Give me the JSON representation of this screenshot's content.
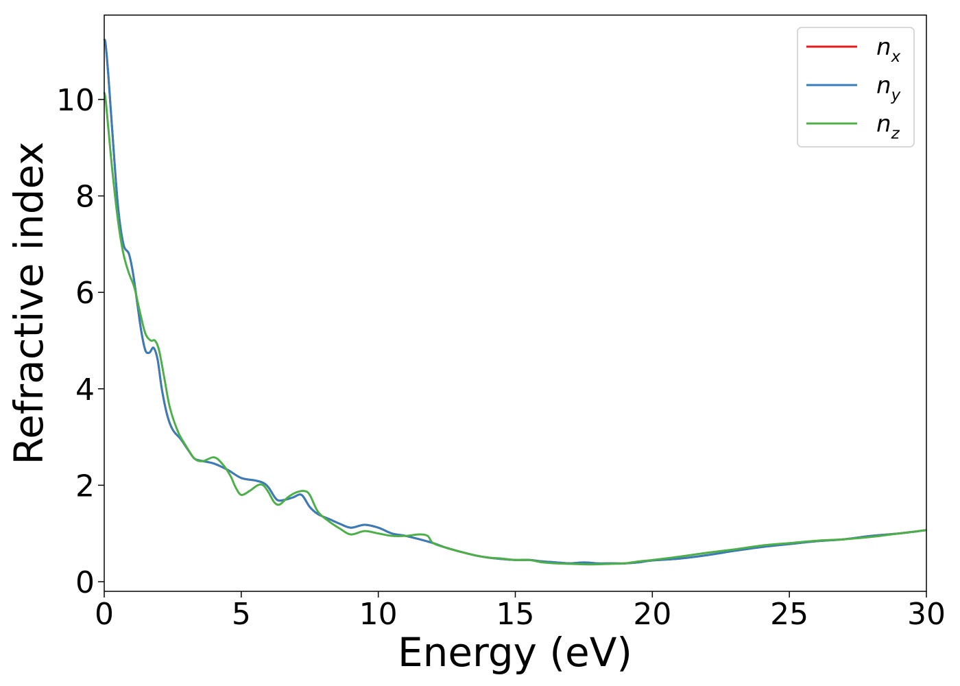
{
  "chart_data": {
    "type": "line",
    "title": "",
    "xlabel": "Energy (eV)",
    "ylabel": "Refractive index",
    "xlim": [
      0,
      30
    ],
    "ylim": [
      -0.2,
      11.75
    ],
    "xticks": [
      0,
      5,
      10,
      15,
      20,
      25,
      30
    ],
    "xtick_labels": [
      "0",
      "5",
      "10",
      "15",
      "20",
      "25",
      "30"
    ],
    "yticks": [
      0,
      2,
      4,
      6,
      8,
      10
    ],
    "ytick_labels": [
      "0",
      "2",
      "4",
      "6",
      "8",
      "10"
    ],
    "grid": false,
    "legend_position": "top-right",
    "series": [
      {
        "name": "n_x",
        "legend": {
          "base": "n",
          "sub": "x"
        },
        "color": "#e41a1c",
        "x": [
          0.0,
          0.05,
          0.15,
          0.3,
          0.5,
          0.7,
          0.9,
          1.05,
          1.2,
          1.35,
          1.5,
          1.65,
          1.8,
          1.95,
          2.1,
          2.3,
          2.5,
          2.8,
          3.1,
          3.3,
          3.6,
          4.0,
          4.5,
          5.0,
          5.5,
          5.8,
          6.0,
          6.3,
          6.6,
          6.9,
          7.2,
          7.5,
          7.8,
          8.2,
          8.6,
          9.0,
          9.5,
          10.0,
          10.5,
          11.0,
          11.5,
          12.0,
          12.5,
          13.0,
          13.5,
          14.0,
          14.5,
          15.0,
          15.5,
          16.0,
          16.5,
          17.0,
          17.5,
          18.0,
          18.5,
          19.0,
          19.5,
          20.0,
          21.0,
          22.0,
          23.0,
          24.0,
          25.0,
          26.0,
          27.0,
          28.0,
          29.0,
          30.0
        ],
        "y": [
          11.25,
          11.15,
          10.5,
          9.3,
          7.8,
          7.0,
          6.8,
          6.4,
          5.8,
          5.2,
          4.8,
          4.75,
          4.85,
          4.6,
          4.0,
          3.45,
          3.15,
          2.95,
          2.7,
          2.55,
          2.5,
          2.45,
          2.32,
          2.15,
          2.1,
          2.05,
          1.95,
          1.7,
          1.7,
          1.75,
          1.8,
          1.55,
          1.4,
          1.3,
          1.2,
          1.12,
          1.18,
          1.12,
          1.0,
          0.95,
          0.88,
          0.8,
          0.7,
          0.62,
          0.55,
          0.5,
          0.47,
          0.45,
          0.45,
          0.42,
          0.4,
          0.38,
          0.4,
          0.38,
          0.38,
          0.38,
          0.4,
          0.44,
          0.48,
          0.55,
          0.64,
          0.72,
          0.78,
          0.84,
          0.88,
          0.95,
          1.0,
          1.07
        ]
      },
      {
        "name": "n_y",
        "legend": {
          "base": "n",
          "sub": "y"
        },
        "color": "#377eb8",
        "x": [
          0.0,
          0.05,
          0.15,
          0.3,
          0.5,
          0.7,
          0.9,
          1.05,
          1.2,
          1.35,
          1.5,
          1.65,
          1.8,
          1.95,
          2.1,
          2.3,
          2.5,
          2.8,
          3.1,
          3.3,
          3.6,
          4.0,
          4.5,
          5.0,
          5.5,
          5.8,
          6.0,
          6.3,
          6.6,
          6.9,
          7.2,
          7.5,
          7.8,
          8.2,
          8.6,
          9.0,
          9.5,
          10.0,
          10.5,
          11.0,
          11.5,
          12.0,
          12.5,
          13.0,
          13.5,
          14.0,
          14.5,
          15.0,
          15.5,
          16.0,
          16.5,
          17.0,
          17.5,
          18.0,
          18.5,
          19.0,
          19.5,
          20.0,
          21.0,
          22.0,
          23.0,
          24.0,
          25.0,
          26.0,
          27.0,
          28.0,
          29.0,
          30.0
        ],
        "y": [
          11.25,
          11.15,
          10.5,
          9.3,
          7.8,
          7.0,
          6.8,
          6.4,
          5.8,
          5.2,
          4.8,
          4.75,
          4.85,
          4.6,
          4.0,
          3.45,
          3.15,
          2.95,
          2.7,
          2.55,
          2.5,
          2.45,
          2.32,
          2.15,
          2.1,
          2.05,
          1.95,
          1.7,
          1.7,
          1.75,
          1.8,
          1.55,
          1.4,
          1.3,
          1.2,
          1.12,
          1.18,
          1.12,
          1.0,
          0.95,
          0.88,
          0.8,
          0.7,
          0.62,
          0.55,
          0.5,
          0.47,
          0.45,
          0.45,
          0.42,
          0.4,
          0.38,
          0.4,
          0.38,
          0.38,
          0.38,
          0.4,
          0.44,
          0.48,
          0.55,
          0.64,
          0.72,
          0.78,
          0.84,
          0.88,
          0.95,
          1.0,
          1.07
        ]
      },
      {
        "name": "n_z",
        "legend": {
          "base": "n",
          "sub": "z"
        },
        "color": "#4daf4a",
        "x": [
          0.0,
          0.05,
          0.15,
          0.3,
          0.5,
          0.7,
          0.9,
          1.1,
          1.3,
          1.5,
          1.7,
          1.85,
          2.0,
          2.2,
          2.4,
          2.7,
          3.0,
          3.3,
          3.6,
          4.0,
          4.3,
          4.6,
          4.8,
          5.0,
          5.3,
          5.6,
          5.8,
          6.0,
          6.2,
          6.4,
          6.7,
          7.0,
          7.3,
          7.5,
          7.8,
          8.2,
          8.6,
          9.0,
          9.5,
          10.0,
          10.5,
          11.0,
          11.5,
          11.8,
          12.0,
          12.5,
          13.0,
          13.5,
          14.0,
          14.5,
          15.0,
          15.5,
          16.0,
          16.5,
          17.0,
          17.5,
          18.0,
          18.5,
          19.0,
          19.5,
          20.0,
          21.0,
          22.0,
          23.0,
          24.0,
          25.0,
          26.0,
          27.0,
          28.0,
          29.0,
          30.0
        ],
        "y": [
          10.15,
          10.0,
          9.4,
          8.5,
          7.5,
          6.8,
          6.4,
          6.1,
          5.6,
          5.15,
          5.0,
          5.0,
          4.8,
          4.2,
          3.6,
          3.1,
          2.8,
          2.55,
          2.5,
          2.58,
          2.45,
          2.2,
          1.95,
          1.8,
          1.88,
          2.0,
          2.0,
          1.85,
          1.65,
          1.6,
          1.75,
          1.85,
          1.88,
          1.8,
          1.45,
          1.25,
          1.1,
          0.98,
          1.05,
          1.0,
          0.95,
          0.95,
          0.98,
          0.95,
          0.8,
          0.7,
          0.62,
          0.55,
          0.5,
          0.48,
          0.45,
          0.45,
          0.4,
          0.38,
          0.37,
          0.36,
          0.36,
          0.37,
          0.38,
          0.42,
          0.45,
          0.52,
          0.6,
          0.67,
          0.75,
          0.8,
          0.85,
          0.88,
          0.93,
          1.0,
          1.07
        ]
      }
    ]
  }
}
